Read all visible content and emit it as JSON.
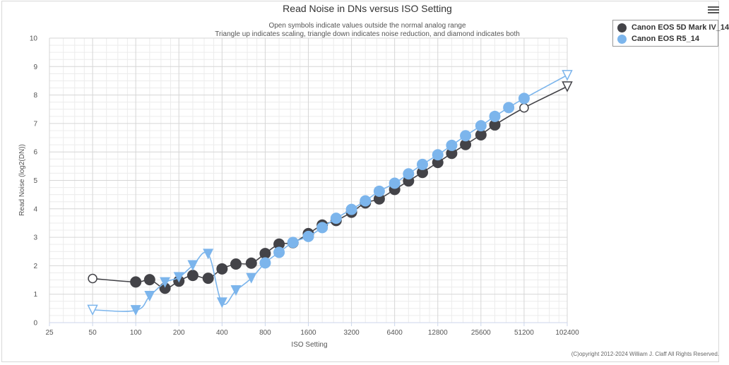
{
  "title": "Read Noise in DNs versus ISO Setting",
  "subtitle_lines": [
    "Open symbols indicate values outside the normal analog range",
    "Triangle up indicates scaling, triangle down indicates noise reduction, and diamond indicates both"
  ],
  "copyright": "(C)opyright 2012-2024 William J. Claff All Rights Reserved.",
  "menu_icon": "hamburger-menu-icon",
  "legend": {
    "placement": "top-right",
    "items": [
      {
        "label": "Canon EOS 5D Mark IV_14",
        "color": "#434348"
      },
      {
        "label": "Canon EOS R5_14",
        "color": "#7cb5ec"
      }
    ]
  },
  "chart_data": {
    "type": "line",
    "title": "Read Noise in DNs versus ISO Setting",
    "xlabel": "ISO Setting",
    "ylabel": "Read Noise (log2(DN))",
    "x_scale": "log2",
    "x_ticks": [
      25,
      50,
      100,
      200,
      400,
      800,
      1600,
      3200,
      6400,
      12800,
      25600,
      51200,
      102400
    ],
    "xlim": [
      25,
      102400
    ],
    "y_ticks": [
      0,
      1,
      2,
      3,
      4,
      5,
      6,
      7,
      8,
      9,
      10
    ],
    "ylim": [
      0,
      10
    ],
    "grid": true,
    "series": [
      {
        "name": "Canon EOS 5D Mark IV_14",
        "color": "#434348",
        "points": [
          {
            "x": 50,
            "y": 1.55,
            "marker": "open-circle"
          },
          {
            "x": 100,
            "y": 1.43,
            "marker": "circle"
          },
          {
            "x": 125,
            "y": 1.51,
            "marker": "circle"
          },
          {
            "x": 160,
            "y": 1.21,
            "marker": "circle"
          },
          {
            "x": 200,
            "y": 1.46,
            "marker": "circle"
          },
          {
            "x": 250,
            "y": 1.66,
            "marker": "circle"
          },
          {
            "x": 320,
            "y": 1.56,
            "marker": "circle"
          },
          {
            "x": 400,
            "y": 1.89,
            "marker": "circle"
          },
          {
            "x": 500,
            "y": 2.06,
            "marker": "circle"
          },
          {
            "x": 640,
            "y": 2.09,
            "marker": "circle"
          },
          {
            "x": 800,
            "y": 2.43,
            "marker": "circle"
          },
          {
            "x": 1000,
            "y": 2.76,
            "marker": "circle"
          },
          {
            "x": 1250,
            "y": 2.81,
            "marker": "circle"
          },
          {
            "x": 1600,
            "y": 3.13,
            "marker": "circle"
          },
          {
            "x": 2000,
            "y": 3.43,
            "marker": "circle"
          },
          {
            "x": 2500,
            "y": 3.59,
            "marker": "circle"
          },
          {
            "x": 3200,
            "y": 3.88,
            "marker": "circle"
          },
          {
            "x": 4000,
            "y": 4.21,
            "marker": "circle"
          },
          {
            "x": 5000,
            "y": 4.35,
            "marker": "circle"
          },
          {
            "x": 6400,
            "y": 4.68,
            "marker": "circle"
          },
          {
            "x": 8000,
            "y": 4.98,
            "marker": "circle"
          },
          {
            "x": 10000,
            "y": 5.28,
            "marker": "circle"
          },
          {
            "x": 12800,
            "y": 5.63,
            "marker": "circle"
          },
          {
            "x": 16000,
            "y": 5.95,
            "marker": "circle"
          },
          {
            "x": 20000,
            "y": 6.26,
            "marker": "circle"
          },
          {
            "x": 25600,
            "y": 6.6,
            "marker": "circle"
          },
          {
            "x": 32000,
            "y": 6.95,
            "marker": "circle"
          },
          {
            "x": 51200,
            "y": 7.55,
            "marker": "open-circle"
          },
          {
            "x": 102400,
            "y": 8.3,
            "marker": "open-triangle-down"
          }
        ]
      },
      {
        "name": "Canon EOS R5_14",
        "color": "#7cb5ec",
        "points": [
          {
            "x": 50,
            "y": 0.45,
            "marker": "open-triangle-down"
          },
          {
            "x": 100,
            "y": 0.43,
            "marker": "triangle-down"
          },
          {
            "x": 125,
            "y": 0.93,
            "marker": "triangle-down"
          },
          {
            "x": 160,
            "y": 1.41,
            "marker": "triangle-down"
          },
          {
            "x": 200,
            "y": 1.59,
            "marker": "triangle-down"
          },
          {
            "x": 250,
            "y": 2.01,
            "marker": "triangle-down"
          },
          {
            "x": 320,
            "y": 2.41,
            "marker": "triangle-down"
          },
          {
            "x": 400,
            "y": 0.7,
            "marker": "triangle-down"
          },
          {
            "x": 500,
            "y": 1.13,
            "marker": "triangle-down"
          },
          {
            "x": 640,
            "y": 1.56,
            "marker": "triangle-down"
          },
          {
            "x": 800,
            "y": 2.1,
            "marker": "circle"
          },
          {
            "x": 1000,
            "y": 2.47,
            "marker": "circle"
          },
          {
            "x": 1250,
            "y": 2.82,
            "marker": "circle"
          },
          {
            "x": 1600,
            "y": 3.03,
            "marker": "circle"
          },
          {
            "x": 2000,
            "y": 3.34,
            "marker": "circle"
          },
          {
            "x": 2500,
            "y": 3.67,
            "marker": "circle"
          },
          {
            "x": 3200,
            "y": 3.98,
            "marker": "circle"
          },
          {
            "x": 4000,
            "y": 4.28,
            "marker": "circle"
          },
          {
            "x": 5000,
            "y": 4.62,
            "marker": "circle"
          },
          {
            "x": 6400,
            "y": 4.9,
            "marker": "circle"
          },
          {
            "x": 8000,
            "y": 5.23,
            "marker": "circle"
          },
          {
            "x": 10000,
            "y": 5.56,
            "marker": "circle"
          },
          {
            "x": 12800,
            "y": 5.9,
            "marker": "circle"
          },
          {
            "x": 16000,
            "y": 6.23,
            "marker": "circle"
          },
          {
            "x": 20000,
            "y": 6.57,
            "marker": "circle"
          },
          {
            "x": 25600,
            "y": 6.92,
            "marker": "circle"
          },
          {
            "x": 32000,
            "y": 7.25,
            "marker": "circle"
          },
          {
            "x": 40000,
            "y": 7.56,
            "marker": "circle"
          },
          {
            "x": 51200,
            "y": 7.88,
            "marker": "circle"
          },
          {
            "x": 102400,
            "y": 8.7,
            "marker": "open-triangle-down"
          }
        ]
      }
    ]
  }
}
